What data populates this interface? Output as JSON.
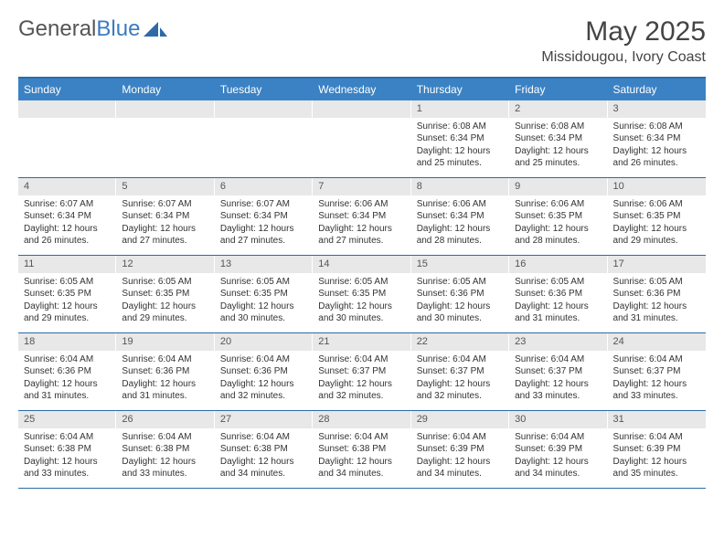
{
  "logo": {
    "text1": "General",
    "text2": "Blue"
  },
  "title": "May 2025",
  "location": "Missidougou, Ivory Coast",
  "colors": {
    "header_bar": "#3b82c4",
    "border": "#2a6ca8",
    "daynum_bg": "#e8e8e8",
    "text": "#333333",
    "logo_gray": "#555555",
    "logo_blue": "#3b7bbf"
  },
  "days_of_week": [
    "Sunday",
    "Monday",
    "Tuesday",
    "Wednesday",
    "Thursday",
    "Friday",
    "Saturday"
  ],
  "weeks": [
    [
      {
        "n": "",
        "lines": []
      },
      {
        "n": "",
        "lines": []
      },
      {
        "n": "",
        "lines": []
      },
      {
        "n": "",
        "lines": []
      },
      {
        "n": "1",
        "lines": [
          "Sunrise: 6:08 AM",
          "Sunset: 6:34 PM",
          "Daylight: 12 hours and 25 minutes."
        ]
      },
      {
        "n": "2",
        "lines": [
          "Sunrise: 6:08 AM",
          "Sunset: 6:34 PM",
          "Daylight: 12 hours and 25 minutes."
        ]
      },
      {
        "n": "3",
        "lines": [
          "Sunrise: 6:08 AM",
          "Sunset: 6:34 PM",
          "Daylight: 12 hours and 26 minutes."
        ]
      }
    ],
    [
      {
        "n": "4",
        "lines": [
          "Sunrise: 6:07 AM",
          "Sunset: 6:34 PM",
          "Daylight: 12 hours and 26 minutes."
        ]
      },
      {
        "n": "5",
        "lines": [
          "Sunrise: 6:07 AM",
          "Sunset: 6:34 PM",
          "Daylight: 12 hours and 27 minutes."
        ]
      },
      {
        "n": "6",
        "lines": [
          "Sunrise: 6:07 AM",
          "Sunset: 6:34 PM",
          "Daylight: 12 hours and 27 minutes."
        ]
      },
      {
        "n": "7",
        "lines": [
          "Sunrise: 6:06 AM",
          "Sunset: 6:34 PM",
          "Daylight: 12 hours and 27 minutes."
        ]
      },
      {
        "n": "8",
        "lines": [
          "Sunrise: 6:06 AM",
          "Sunset: 6:34 PM",
          "Daylight: 12 hours and 28 minutes."
        ]
      },
      {
        "n": "9",
        "lines": [
          "Sunrise: 6:06 AM",
          "Sunset: 6:35 PM",
          "Daylight: 12 hours and 28 minutes."
        ]
      },
      {
        "n": "10",
        "lines": [
          "Sunrise: 6:06 AM",
          "Sunset: 6:35 PM",
          "Daylight: 12 hours and 29 minutes."
        ]
      }
    ],
    [
      {
        "n": "11",
        "lines": [
          "Sunrise: 6:05 AM",
          "Sunset: 6:35 PM",
          "Daylight: 12 hours and 29 minutes."
        ]
      },
      {
        "n": "12",
        "lines": [
          "Sunrise: 6:05 AM",
          "Sunset: 6:35 PM",
          "Daylight: 12 hours and 29 minutes."
        ]
      },
      {
        "n": "13",
        "lines": [
          "Sunrise: 6:05 AM",
          "Sunset: 6:35 PM",
          "Daylight: 12 hours and 30 minutes."
        ]
      },
      {
        "n": "14",
        "lines": [
          "Sunrise: 6:05 AM",
          "Sunset: 6:35 PM",
          "Daylight: 12 hours and 30 minutes."
        ]
      },
      {
        "n": "15",
        "lines": [
          "Sunrise: 6:05 AM",
          "Sunset: 6:36 PM",
          "Daylight: 12 hours and 30 minutes."
        ]
      },
      {
        "n": "16",
        "lines": [
          "Sunrise: 6:05 AM",
          "Sunset: 6:36 PM",
          "Daylight: 12 hours and 31 minutes."
        ]
      },
      {
        "n": "17",
        "lines": [
          "Sunrise: 6:05 AM",
          "Sunset: 6:36 PM",
          "Daylight: 12 hours and 31 minutes."
        ]
      }
    ],
    [
      {
        "n": "18",
        "lines": [
          "Sunrise: 6:04 AM",
          "Sunset: 6:36 PM",
          "Daylight: 12 hours and 31 minutes."
        ]
      },
      {
        "n": "19",
        "lines": [
          "Sunrise: 6:04 AM",
          "Sunset: 6:36 PM",
          "Daylight: 12 hours and 31 minutes."
        ]
      },
      {
        "n": "20",
        "lines": [
          "Sunrise: 6:04 AM",
          "Sunset: 6:36 PM",
          "Daylight: 12 hours and 32 minutes."
        ]
      },
      {
        "n": "21",
        "lines": [
          "Sunrise: 6:04 AM",
          "Sunset: 6:37 PM",
          "Daylight: 12 hours and 32 minutes."
        ]
      },
      {
        "n": "22",
        "lines": [
          "Sunrise: 6:04 AM",
          "Sunset: 6:37 PM",
          "Daylight: 12 hours and 32 minutes."
        ]
      },
      {
        "n": "23",
        "lines": [
          "Sunrise: 6:04 AM",
          "Sunset: 6:37 PM",
          "Daylight: 12 hours and 33 minutes."
        ]
      },
      {
        "n": "24",
        "lines": [
          "Sunrise: 6:04 AM",
          "Sunset: 6:37 PM",
          "Daylight: 12 hours and 33 minutes."
        ]
      }
    ],
    [
      {
        "n": "25",
        "lines": [
          "Sunrise: 6:04 AM",
          "Sunset: 6:38 PM",
          "Daylight: 12 hours and 33 minutes."
        ]
      },
      {
        "n": "26",
        "lines": [
          "Sunrise: 6:04 AM",
          "Sunset: 6:38 PM",
          "Daylight: 12 hours and 33 minutes."
        ]
      },
      {
        "n": "27",
        "lines": [
          "Sunrise: 6:04 AM",
          "Sunset: 6:38 PM",
          "Daylight: 12 hours and 34 minutes."
        ]
      },
      {
        "n": "28",
        "lines": [
          "Sunrise: 6:04 AM",
          "Sunset: 6:38 PM",
          "Daylight: 12 hours and 34 minutes."
        ]
      },
      {
        "n": "29",
        "lines": [
          "Sunrise: 6:04 AM",
          "Sunset: 6:39 PM",
          "Daylight: 12 hours and 34 minutes."
        ]
      },
      {
        "n": "30",
        "lines": [
          "Sunrise: 6:04 AM",
          "Sunset: 6:39 PM",
          "Daylight: 12 hours and 34 minutes."
        ]
      },
      {
        "n": "31",
        "lines": [
          "Sunrise: 6:04 AM",
          "Sunset: 6:39 PM",
          "Daylight: 12 hours and 35 minutes."
        ]
      }
    ]
  ]
}
